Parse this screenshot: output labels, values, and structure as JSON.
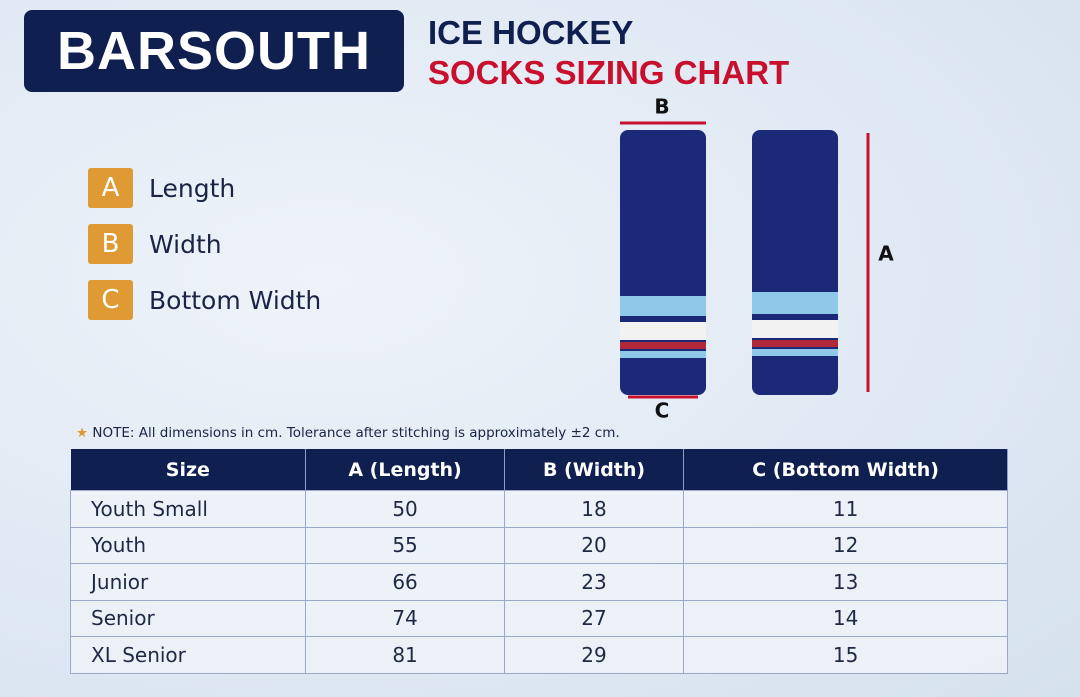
{
  "logo": {
    "brand": "BARSOUTH"
  },
  "header": {
    "line1": "ICE HOCKEY",
    "line2": "SOCKS SIZING CHART"
  },
  "legend": [
    {
      "letter": "A",
      "label": "Length"
    },
    {
      "letter": "B",
      "label": "Width"
    },
    {
      "letter": "C",
      "label": "Bottom Width"
    }
  ],
  "diagram": {
    "top_label": "B",
    "side_label": "A",
    "bottom_label": "C"
  },
  "note": "NOTE: All dimensions in cm. Tolerance after stitching is approximately ±2 cm.",
  "table": {
    "columns": [
      "Size",
      "A (Length)",
      "B (Width)",
      "C (Bottom Width)"
    ],
    "rows": [
      [
        "Youth Small",
        50,
        18,
        11
      ],
      [
        "Youth",
        55,
        20,
        12
      ],
      [
        "Junior",
        66,
        23,
        13
      ],
      [
        "Senior",
        74,
        27,
        14
      ],
      [
        "XL Senior",
        81,
        29,
        15
      ]
    ]
  }
}
